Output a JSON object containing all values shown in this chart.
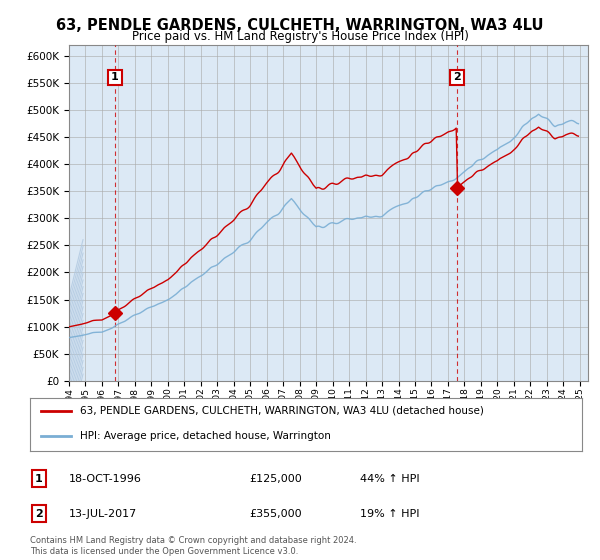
{
  "title": "63, PENDLE GARDENS, CULCHETH, WARRINGTON, WA3 4LU",
  "subtitle": "Price paid vs. HM Land Registry's House Price Index (HPI)",
  "legend_line1": "63, PENDLE GARDENS, CULCHETH, WARRINGTON, WA3 4LU (detached house)",
  "legend_line2": "HPI: Average price, detached house, Warrington",
  "annotation1_date": "18-OCT-1996",
  "annotation1_price": "£125,000",
  "annotation1_pct": "44% ↑ HPI",
  "annotation2_date": "13-JUL-2017",
  "annotation2_price": "£355,000",
  "annotation2_pct": "19% ↑ HPI",
  "footer": "Contains HM Land Registry data © Crown copyright and database right 2024.\nThis data is licensed under the Open Government Licence v3.0.",
  "ylim": [
    0,
    620000
  ],
  "yticks": [
    0,
    50000,
    100000,
    150000,
    200000,
    250000,
    300000,
    350000,
    400000,
    450000,
    500000,
    550000,
    600000
  ],
  "red_color": "#cc0000",
  "blue_color": "#7aaed4",
  "background_color": "#ffffff",
  "plot_bg_color": "#dce9f5",
  "hatch_color": "#b0c8e0",
  "sale1_x": 1996.79,
  "sale1_y": 125000,
  "sale2_x": 2017.54,
  "sale2_y": 355000,
  "xmin": 1994,
  "xmax": 2025.5
}
